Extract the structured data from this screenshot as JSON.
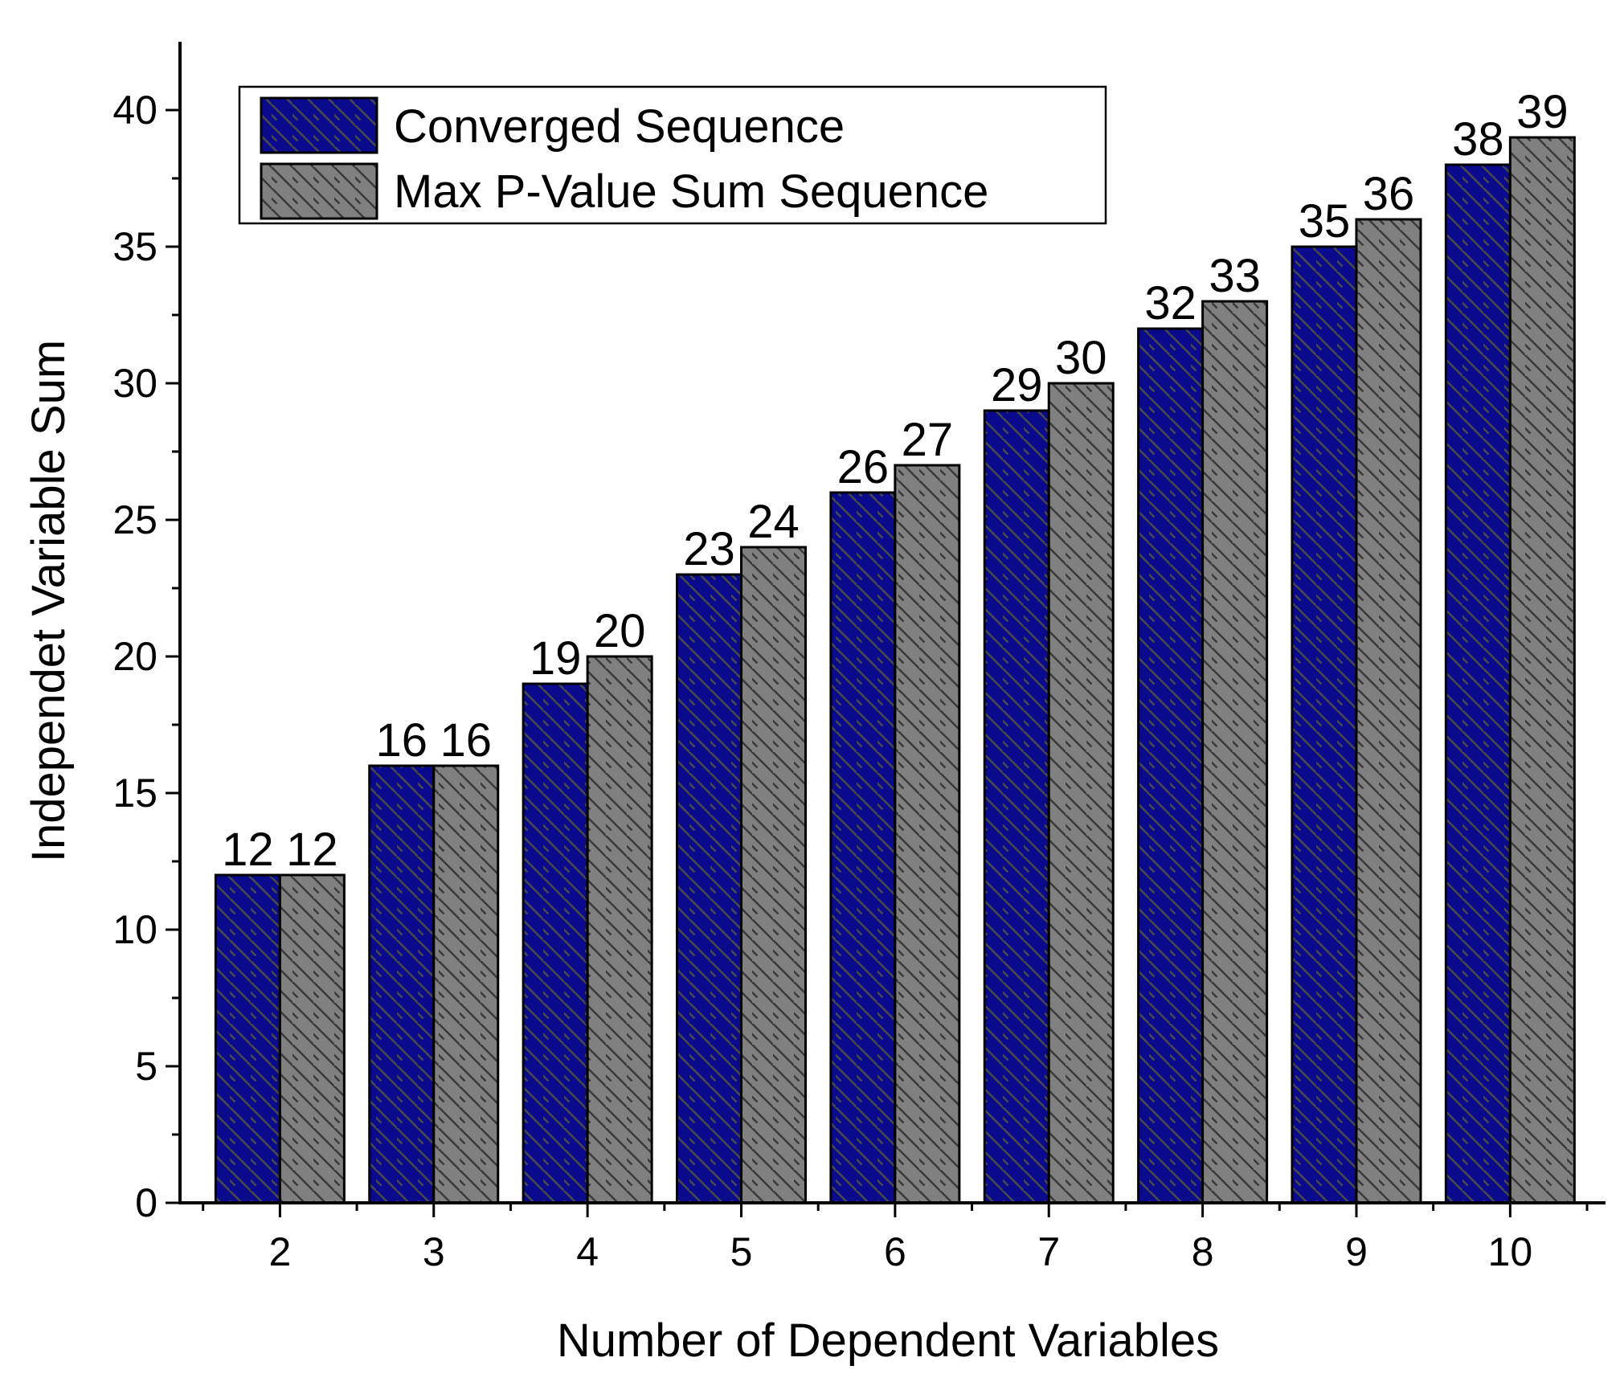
{
  "chart_data": {
    "type": "bar",
    "title": "",
    "xlabel": "Number of Dependent Variables",
    "ylabel": "Independet Variable Sum",
    "categories": [
      "2",
      "3",
      "4",
      "5",
      "6",
      "7",
      "8",
      "9",
      "10"
    ],
    "series": [
      {
        "name": "Converged Sequence",
        "values": [
          12,
          16,
          19,
          23,
          26,
          29,
          32,
          35,
          38
        ],
        "color": "#0a0a8c",
        "pattern": "hatch-diagonal-down"
      },
      {
        "name": "Max P-Value Sum Sequence",
        "values": [
          12,
          16,
          20,
          24,
          27,
          30,
          33,
          36,
          39
        ],
        "color": "#808080",
        "pattern": "hatch-diagonal-down"
      }
    ],
    "ylim": [
      0,
      42.5
    ],
    "yticks": [
      0,
      5,
      10,
      15,
      20,
      25,
      30,
      35,
      40
    ],
    "grid": false,
    "legend_position": "top-left"
  }
}
